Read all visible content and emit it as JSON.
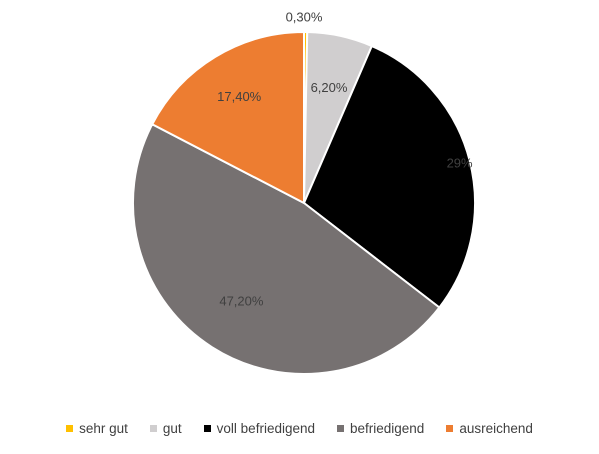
{
  "chart_data": {
    "type": "pie",
    "title": "",
    "slices": [
      {
        "name": "sehr gut",
        "value": 0.3,
        "label": "0,30%",
        "color": "#ffc000",
        "label_color": "#404040"
      },
      {
        "name": "gut",
        "value": 6.2,
        "label": "6,20%",
        "color": "#d0cecf",
        "label_color": "#404040"
      },
      {
        "name": "voll befriedigend",
        "value": 29,
        "label": "29%",
        "color": "#000000",
        "label_color": "#404040"
      },
      {
        "name": "befriedigend",
        "value": 47.2,
        "label": "47,20%",
        "color": "#767171",
        "label_color": "#404040"
      },
      {
        "name": "ausreichend",
        "value": 17.4,
        "label": "17,40%",
        "color": "#ed7d31",
        "label_color": "#404040"
      }
    ],
    "legend_position": "bottom",
    "border_color": "#ffffff"
  }
}
